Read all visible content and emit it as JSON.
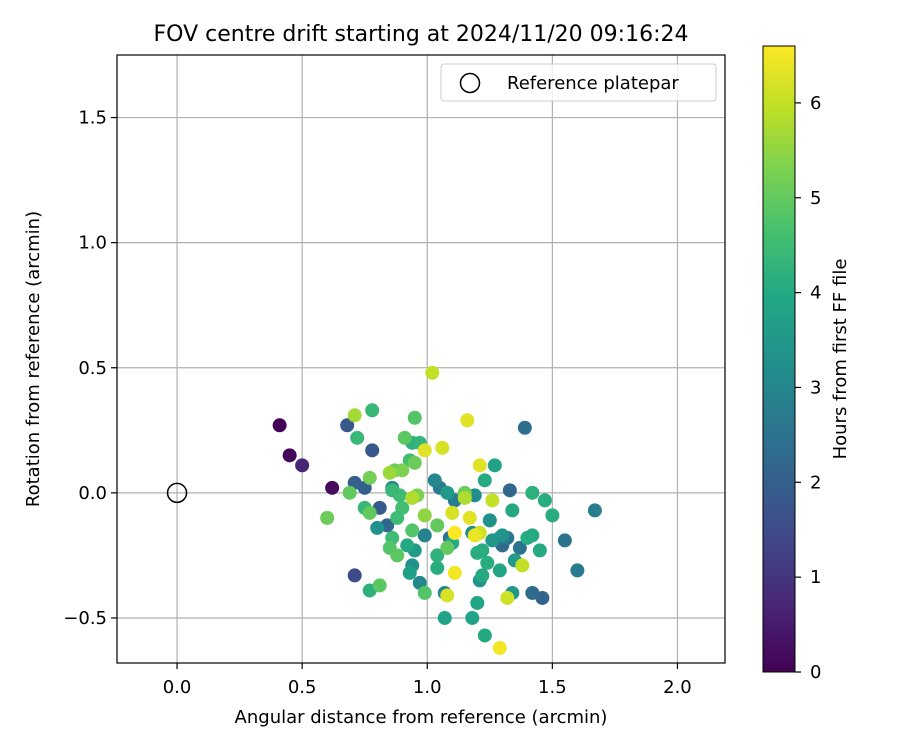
{
  "chart_data": {
    "type": "scatter",
    "title": "FOV centre drift starting at 2024/11/20 09:16:24",
    "xlabel": "Angular distance from reference (arcmin)",
    "ylabel": "Rotation from reference (arcmin)",
    "xlim": [
      -0.24,
      2.19
    ],
    "ylim": [
      -0.68,
      1.75
    ],
    "xticks": [
      0.0,
      0.5,
      1.0,
      1.5,
      2.0
    ],
    "xtick_labels": [
      "0.0",
      "0.5",
      "1.0",
      "1.5",
      "2.0"
    ],
    "yticks": [
      -0.5,
      0.0,
      0.5,
      1.0,
      1.5
    ],
    "ytick_labels": [
      "−0.5",
      "0.0",
      "0.5",
      "1.0",
      "1.5"
    ],
    "grid": true,
    "legend": {
      "position": "top-right",
      "entries": [
        {
          "label": "Reference platepar",
          "marker": "open-circle",
          "x": 0.0,
          "y": 0.0
        }
      ]
    },
    "colorbar": {
      "label": "Hours from first FF file",
      "colormap": "viridis",
      "range": [
        0,
        6.6
      ],
      "ticks": [
        0,
        1,
        2,
        3,
        4,
        5,
        6
      ],
      "tick_labels": [
        "0",
        "1",
        "2",
        "3",
        "4",
        "5",
        "6"
      ]
    },
    "series": [
      {
        "points": [
          {
            "x": 0.41,
            "y": 0.27,
            "c": 0.0
          },
          {
            "x": 0.45,
            "y": 0.15,
            "c": 0.1
          },
          {
            "x": 0.62,
            "y": 0.02,
            "c": 0.2
          },
          {
            "x": 0.5,
            "y": 0.11,
            "c": 0.7
          },
          {
            "x": 0.71,
            "y": -0.33,
            "c": 1.5
          },
          {
            "x": 0.68,
            "y": 0.27,
            "c": 1.8
          },
          {
            "x": 0.78,
            "y": 0.17,
            "c": 1.8
          },
          {
            "x": 0.71,
            "y": 0.04,
            "c": 2.0
          },
          {
            "x": 0.75,
            "y": 0.02,
            "c": 2.0
          },
          {
            "x": 0.81,
            "y": -0.06,
            "c": 1.9
          },
          {
            "x": 0.84,
            "y": -0.13,
            "c": 2.2
          },
          {
            "x": 1.39,
            "y": 0.26,
            "c": 2.4
          },
          {
            "x": 1.33,
            "y": 0.01,
            "c": 2.2
          },
          {
            "x": 1.46,
            "y": -0.42,
            "c": 2.1
          },
          {
            "x": 1.42,
            "y": -0.4,
            "c": 2.3
          },
          {
            "x": 1.55,
            "y": -0.19,
            "c": 2.5
          },
          {
            "x": 1.6,
            "y": -0.31,
            "c": 2.7
          },
          {
            "x": 1.67,
            "y": -0.07,
            "c": 2.8
          },
          {
            "x": 1.3,
            "y": -0.21,
            "c": 2.3
          },
          {
            "x": 1.37,
            "y": -0.22,
            "c": 2.5
          },
          {
            "x": 1.29,
            "y": -0.18,
            "c": 2.4
          },
          {
            "x": 1.32,
            "y": -0.18,
            "c": 2.6
          },
          {
            "x": 1.09,
            "y": -0.18,
            "c": 2.5
          },
          {
            "x": 1.11,
            "y": -0.03,
            "c": 2.8
          },
          {
            "x": 1.05,
            "y": 0.02,
            "c": 2.7
          },
          {
            "x": 0.99,
            "y": -0.17,
            "c": 2.9
          },
          {
            "x": 0.97,
            "y": -0.36,
            "c": 3.1
          },
          {
            "x": 1.07,
            "y": -0.4,
            "c": 3.0
          },
          {
            "x": 1.03,
            "y": 0.05,
            "c": 3.0
          },
          {
            "x": 0.86,
            "y": 0.02,
            "c": 3.0
          },
          {
            "x": 0.94,
            "y": -0.29,
            "c": 3.3
          },
          {
            "x": 1.18,
            "y": -0.16,
            "c": 3.2
          },
          {
            "x": 1.19,
            "y": -0.01,
            "c": 3.2
          },
          {
            "x": 1.25,
            "y": -0.11,
            "c": 3.3
          },
          {
            "x": 1.21,
            "y": -0.35,
            "c": 3.4
          },
          {
            "x": 0.8,
            "y": -0.14,
            "c": 3.3
          },
          {
            "x": 1.26,
            "y": -0.19,
            "c": 3.5
          },
          {
            "x": 1.35,
            "y": -0.27,
            "c": 3.6
          },
          {
            "x": 1.08,
            "y": 0.0,
            "c": 3.6
          },
          {
            "x": 0.95,
            "y": -0.23,
            "c": 3.6
          },
          {
            "x": 1.3,
            "y": -0.17,
            "c": 3.4
          },
          {
            "x": 1.34,
            "y": -0.4,
            "c": 3.5
          },
          {
            "x": 0.93,
            "y": -0.32,
            "c": 3.7
          },
          {
            "x": 1.18,
            "y": -0.5,
            "c": 3.8
          },
          {
            "x": 1.07,
            "y": -0.5,
            "c": 3.8
          },
          {
            "x": 1.2,
            "y": -0.44,
            "c": 3.9
          },
          {
            "x": 1.23,
            "y": -0.57,
            "c": 4.0
          },
          {
            "x": 1.29,
            "y": -0.31,
            "c": 3.9
          },
          {
            "x": 1.27,
            "y": 0.11,
            "c": 3.8
          },
          {
            "x": 1.23,
            "y": 0.05,
            "c": 4.0
          },
          {
            "x": 1.34,
            "y": -0.07,
            "c": 4.0
          },
          {
            "x": 1.22,
            "y": -0.23,
            "c": 4.1
          },
          {
            "x": 1.4,
            "y": -0.18,
            "c": 4.1
          },
          {
            "x": 1.42,
            "y": -0.17,
            "c": 4.0
          },
          {
            "x": 1.5,
            "y": -0.09,
            "c": 4.1
          },
          {
            "x": 1.45,
            "y": -0.23,
            "c": 4.0
          },
          {
            "x": 1.42,
            "y": 0.0,
            "c": 4.2
          },
          {
            "x": 1.47,
            "y": -0.03,
            "c": 4.1
          },
          {
            "x": 1.22,
            "y": -0.33,
            "c": 4.0
          },
          {
            "x": 1.24,
            "y": -0.28,
            "c": 4.1
          },
          {
            "x": 1.04,
            "y": -0.3,
            "c": 4.1
          },
          {
            "x": 1.04,
            "y": -0.25,
            "c": 4.2
          },
          {
            "x": 1.1,
            "y": -0.2,
            "c": 4.0
          },
          {
            "x": 1.2,
            "y": -0.24,
            "c": 4.1
          },
          {
            "x": 0.92,
            "y": -0.21,
            "c": 4.0
          },
          {
            "x": 0.94,
            "y": 0.2,
            "c": 4.2
          },
          {
            "x": 0.97,
            "y": 0.2,
            "c": 4.3
          },
          {
            "x": 0.78,
            "y": 0.33,
            "c": 4.4
          },
          {
            "x": 0.72,
            "y": 0.22,
            "c": 4.4
          },
          {
            "x": 0.75,
            "y": -0.06,
            "c": 4.4
          },
          {
            "x": 0.77,
            "y": -0.39,
            "c": 4.2
          },
          {
            "x": 0.86,
            "y": -0.18,
            "c": 4.5
          },
          {
            "x": 0.89,
            "y": -0.01,
            "c": 4.5
          },
          {
            "x": 0.86,
            "y": 0.01,
            "c": 4.4
          },
          {
            "x": 0.9,
            "y": -0.06,
            "c": 4.6
          },
          {
            "x": 0.88,
            "y": -0.1,
            "c": 4.5
          },
          {
            "x": 0.93,
            "y": 0.13,
            "c": 4.6
          },
          {
            "x": 0.95,
            "y": 0.3,
            "c": 4.8
          },
          {
            "x": 0.91,
            "y": 0.22,
            "c": 4.9
          },
          {
            "x": 0.99,
            "y": -0.4,
            "c": 4.8
          },
          {
            "x": 0.81,
            "y": -0.37,
            "c": 4.9
          },
          {
            "x": 0.85,
            "y": -0.22,
            "c": 4.8
          },
          {
            "x": 0.88,
            "y": -0.25,
            "c": 4.9
          },
          {
            "x": 0.94,
            "y": -0.15,
            "c": 4.8
          },
          {
            "x": 0.77,
            "y": -0.08,
            "c": 5.0
          },
          {
            "x": 0.6,
            "y": -0.1,
            "c": 5.1
          },
          {
            "x": 0.69,
            "y": 0.0,
            "c": 5.0
          },
          {
            "x": 0.77,
            "y": 0.06,
            "c": 5.2
          },
          {
            "x": 0.87,
            "y": 0.09,
            "c": 5.1
          },
          {
            "x": 0.9,
            "y": 0.09,
            "c": 5.3
          },
          {
            "x": 0.95,
            "y": 0.12,
            "c": 5.1
          },
          {
            "x": 1.04,
            "y": -0.13,
            "c": 5.0
          },
          {
            "x": 1.15,
            "y": 0.0,
            "c": 5.1
          },
          {
            "x": 1.08,
            "y": -0.22,
            "c": 5.0
          },
          {
            "x": 0.96,
            "y": -0.01,
            "c": 5.3
          },
          {
            "x": 0.99,
            "y": -0.09,
            "c": 5.5
          },
          {
            "x": 0.85,
            "y": 0.08,
            "c": 5.6
          },
          {
            "x": 0.71,
            "y": 0.31,
            "c": 5.7
          },
          {
            "x": 0.94,
            "y": -0.02,
            "c": 5.8
          },
          {
            "x": 1.15,
            "y": -0.02,
            "c": 5.8
          },
          {
            "x": 1.26,
            "y": -0.03,
            "c": 6.0
          },
          {
            "x": 1.38,
            "y": -0.29,
            "c": 6.0
          },
          {
            "x": 1.32,
            "y": -0.42,
            "c": 6.1
          },
          {
            "x": 1.08,
            "y": -0.41,
            "c": 6.2
          },
          {
            "x": 1.1,
            "y": -0.08,
            "c": 6.2
          },
          {
            "x": 1.17,
            "y": -0.1,
            "c": 6.3
          },
          {
            "x": 1.21,
            "y": -0.16,
            "c": 6.1
          },
          {
            "x": 1.16,
            "y": 0.29,
            "c": 6.3
          },
          {
            "x": 1.06,
            "y": 0.18,
            "c": 6.2
          },
          {
            "x": 1.21,
            "y": 0.11,
            "c": 6.3
          },
          {
            "x": 0.99,
            "y": 0.17,
            "c": 6.3
          },
          {
            "x": 1.02,
            "y": 0.48,
            "c": 6.0
          },
          {
            "x": 1.11,
            "y": -0.32,
            "c": 6.5
          },
          {
            "x": 1.29,
            "y": -0.62,
            "c": 6.5
          },
          {
            "x": 1.11,
            "y": -0.16,
            "c": 6.6
          },
          {
            "x": 1.19,
            "y": -0.17,
            "c": 6.4
          }
        ]
      }
    ]
  }
}
